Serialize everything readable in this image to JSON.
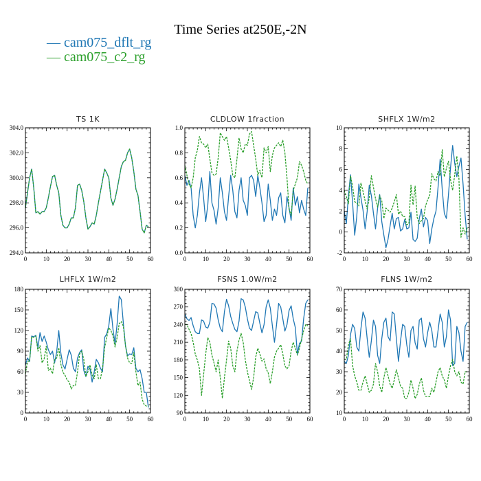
{
  "figure_title": "Time Series at250E,-2N",
  "legend": [
    {
      "label": "— cam075_dflt_rg",
      "color": "#1f77b4"
    },
    {
      "label": "— cam075_c2_rg",
      "color": "#2ca02c"
    }
  ],
  "chart_data": [
    {
      "type": "line",
      "title": "TS   1K",
      "xlim": [
        0,
        60
      ],
      "ylim": [
        294.0,
        304.0
      ],
      "xticks": [
        0,
        10,
        20,
        30,
        40,
        50,
        60
      ],
      "yticks": [
        294.0,
        296.0,
        298.0,
        300.0,
        302.0,
        304.0
      ],
      "ytick_labels": [
        "294.0",
        "296.0",
        "298.0",
        "300.0",
        "302.0",
        "304.0"
      ],
      "series": [
        {
          "name": "cam075_dflt_rg",
          "color": "#1f77b4",
          "dashed": false,
          "values": [
            297.6,
            298.8,
            300.0,
            300.7,
            299.2,
            297.2,
            297.3,
            297.1,
            297.3,
            297.3,
            297.6,
            298.4,
            299.3,
            300.1,
            300.2,
            299.4,
            298.8,
            297.0,
            296.2,
            296.0,
            296.0,
            296.3,
            296.8,
            296.8,
            297.6,
            299.4,
            299.5,
            299.0,
            298.1,
            296.8,
            295.9,
            296.1,
            296.4,
            296.3,
            297.0,
            298.0,
            298.9,
            299.8,
            300.7,
            300.4,
            300.0,
            298.4,
            297.8,
            298.3,
            299.1,
            300.0,
            300.9,
            301.3,
            301.4,
            302.0,
            302.3,
            301.6,
            300.5,
            299.1,
            298.6,
            297.3,
            295.9,
            295.6,
            296.2,
            296.1
          ]
        },
        {
          "name": "cam075_c2_rg",
          "color": "#2ca02c",
          "dashed": true,
          "values": [
            297.6,
            298.8,
            300.0,
            300.7,
            299.2,
            297.2,
            297.3,
            297.1,
            297.3,
            297.3,
            297.6,
            298.4,
            299.3,
            300.1,
            300.2,
            299.4,
            298.8,
            297.0,
            296.2,
            296.0,
            296.0,
            296.3,
            296.8,
            296.8,
            297.6,
            299.4,
            299.5,
            299.0,
            298.1,
            296.8,
            295.9,
            296.1,
            296.4,
            296.3,
            297.0,
            298.0,
            298.9,
            299.8,
            300.7,
            300.4,
            300.0,
            298.4,
            297.8,
            298.3,
            299.1,
            300.0,
            300.9,
            301.3,
            301.4,
            302.0,
            302.3,
            301.6,
            300.5,
            299.1,
            298.6,
            297.3,
            295.9,
            295.6,
            296.2,
            296.1
          ]
        }
      ]
    },
    {
      "type": "line",
      "title": "CLDLOW   1fraction",
      "xlim": [
        0,
        60
      ],
      "ylim": [
        0.0,
        1.0
      ],
      "xticks": [
        0,
        10,
        20,
        30,
        40,
        50,
        60
      ],
      "yticks": [
        0.0,
        0.2,
        0.4,
        0.6,
        0.8,
        1.0
      ],
      "ytick_labels": [
        "0.0",
        "0.2",
        "0.4",
        "0.6",
        "0.8",
        "1.0"
      ],
      "series": [
        {
          "name": "cam075_dflt_rg",
          "color": "#1f77b4",
          "dashed": false,
          "values": [
            0.62,
            0.54,
            0.58,
            0.52,
            0.3,
            0.2,
            0.3,
            0.48,
            0.6,
            0.44,
            0.25,
            0.38,
            0.65,
            0.4,
            0.34,
            0.23,
            0.36,
            0.6,
            0.48,
            0.33,
            0.26,
            0.45,
            0.62,
            0.5,
            0.33,
            0.28,
            0.5,
            0.6,
            0.42,
            0.38,
            0.3,
            0.6,
            0.62,
            0.58,
            0.45,
            0.62,
            0.52,
            0.4,
            0.25,
            0.3,
            0.55,
            0.42,
            0.26,
            0.35,
            0.3,
            0.44,
            0.48,
            0.3,
            0.24,
            0.45,
            0.36,
            0.26,
            0.52,
            0.38,
            0.45,
            0.32,
            0.42,
            0.35,
            0.3,
            0.52
          ]
        },
        {
          "name": "cam075_c2_rg",
          "color": "#2ca02c",
          "dashed": true,
          "values": [
            0.7,
            0.62,
            0.55,
            0.52,
            0.6,
            0.76,
            0.82,
            0.93,
            0.88,
            0.87,
            0.84,
            0.87,
            0.75,
            0.64,
            0.62,
            0.63,
            0.76,
            0.96,
            0.93,
            0.9,
            0.93,
            0.84,
            0.74,
            0.62,
            0.6,
            0.75,
            0.92,
            0.83,
            0.8,
            0.87,
            0.86,
            0.95,
            0.97,
            0.86,
            0.75,
            0.62,
            0.66,
            0.6,
            0.84,
            0.8,
            0.85,
            0.65,
            0.78,
            0.84,
            0.86,
            0.88,
            0.85,
            0.9,
            0.8,
            0.6,
            0.35,
            0.3,
            0.5,
            0.55,
            0.6,
            0.73,
            0.7,
            0.65,
            0.58,
            0.55
          ]
        }
      ]
    },
    {
      "type": "line",
      "title": "SHFLX   1W/m2",
      "xlim": [
        0,
        60
      ],
      "ylim": [
        -2,
        10
      ],
      "xticks": [
        0,
        10,
        20,
        30,
        40,
        50,
        60
      ],
      "yticks": [
        -2,
        0,
        2,
        4,
        6,
        8,
        10
      ],
      "ytick_labels": [
        "-2",
        "0",
        "2",
        "4",
        "6",
        "8",
        "10"
      ],
      "series": [
        {
          "name": "cam075_dflt_rg",
          "color": "#1f77b4",
          "dashed": false,
          "values": [
            2.0,
            0.8,
            3.5,
            5.5,
            2.8,
            -0.3,
            1.5,
            4.6,
            3.3,
            2.1,
            0.3,
            2.0,
            4.5,
            3.5,
            1.8,
            0.3,
            2.3,
            3.6,
            1.0,
            -0.3,
            -1.5,
            -0.7,
            0.6,
            1.8,
            0.3,
            1.3,
            1.4,
            0.1,
            0.3,
            1.2,
            0.3,
            0.4,
            1.9,
            -0.7,
            -0.9,
            -0.6,
            1.3,
            2.2,
            0.5,
            1.4,
            1.1,
            -1.1,
            0.3,
            1.3,
            2.0,
            4.3,
            7.0,
            4.1,
            1.8,
            1.3,
            3.6,
            6.2,
            8.3,
            6.6,
            5.3,
            6.3,
            7.1,
            4.6,
            1.6,
            -0.7
          ]
        },
        {
          "name": "cam075_c2_rg",
          "color": "#2ca02c",
          "dashed": true,
          "values": [
            4.0,
            3.4,
            2.7,
            5.4,
            4.4,
            2.9,
            2.8,
            2.5,
            4.7,
            3.9,
            3.0,
            2.2,
            3.3,
            5.4,
            4.3,
            3.2,
            2.4,
            3.5,
            3.0,
            1.3,
            2.3,
            2.1,
            1.9,
            2.3,
            2.9,
            3.6,
            1.7,
            2.0,
            1.5,
            1.5,
            0.7,
            0.8,
            4.5,
            2.6,
            4.4,
            1.4,
            0.8,
            1.1,
            1.3,
            2.5,
            3.1,
            3.5,
            5.6,
            5.1,
            4.9,
            5.8,
            5.4,
            7.9,
            5.3,
            6.1,
            6.8,
            5.0,
            4.0,
            5.5,
            7.3,
            5.2,
            -0.5,
            0.4,
            -0.2,
            0.4
          ]
        }
      ]
    },
    {
      "type": "line",
      "title": "LHFLX   1W/m2",
      "xlim": [
        0,
        60
      ],
      "ylim": [
        0,
        180
      ],
      "xticks": [
        0,
        10,
        20,
        30,
        40,
        50,
        60
      ],
      "yticks": [
        0,
        30,
        60,
        90,
        120,
        150,
        180
      ],
      "ytick_labels": [
        "0",
        "30",
        "60",
        "90",
        "120",
        "150",
        "180"
      ],
      "series": [
        {
          "name": "cam075_dflt_rg",
          "color": "#1f77b4",
          "dashed": false,
          "values": [
            70,
            80,
            75,
            112,
            111,
            113,
            95,
            117,
            104,
            112,
            103,
            92,
            85,
            90,
            73,
            89,
            120,
            87,
            70,
            64,
            78,
            92,
            84,
            65,
            60,
            80,
            88,
            92,
            62,
            53,
            68,
            64,
            45,
            60,
            78,
            73,
            65,
            60,
            110,
            115,
            127,
            152,
            122,
            101,
            130,
            170,
            165,
            130,
            98,
            83,
            86,
            85,
            95,
            65,
            60,
            63,
            50,
            30,
            30,
            8
          ]
        },
        {
          "name": "cam075_c2_rg",
          "color": "#2ca02c",
          "dashed": true,
          "values": [
            57,
            75,
            75,
            111,
            110,
            112,
            90,
            98,
            73,
            79,
            97,
            62,
            65,
            57,
            78,
            80,
            95,
            71,
            59,
            55,
            48,
            45,
            35,
            40,
            40,
            60,
            86,
            90,
            78,
            53,
            60,
            70,
            55,
            50,
            70,
            50,
            50,
            65,
            95,
            110,
            124,
            120,
            112,
            96,
            110,
            130,
            133,
            126,
            98,
            80,
            73,
            72,
            88,
            60,
            40,
            45,
            20,
            12,
            10,
            10
          ]
        }
      ]
    },
    {
      "type": "line",
      "title": "FSNS   1.0W/m2",
      "xlim": [
        0,
        60
      ],
      "ylim": [
        90,
        300
      ],
      "xticks": [
        0,
        10,
        20,
        30,
        40,
        50,
        60
      ],
      "yticks": [
        90,
        120,
        150,
        180,
        210,
        240,
        270,
        300
      ],
      "ytick_labels": [
        "90",
        "120",
        "150",
        "180",
        "210",
        "240",
        "270",
        "300"
      ],
      "series": [
        {
          "name": "cam075_dflt_rg",
          "color": "#1f77b4",
          "dashed": false,
          "values": [
            258,
            250,
            247,
            252,
            238,
            228,
            225,
            225,
            248,
            246,
            236,
            234,
            244,
            276,
            275,
            268,
            248,
            234,
            228,
            262,
            283,
            272,
            254,
            242,
            232,
            228,
            246,
            284,
            282,
            270,
            250,
            234,
            230,
            246,
            262,
            260,
            242,
            226,
            240,
            270,
            282,
            268,
            238,
            210,
            240,
            276,
            270,
            250,
            229,
            240,
            264,
            272,
            250,
            235,
            190,
            208,
            212,
            250,
            276,
            282
          ]
        },
        {
          "name": "cam075_c2_rg",
          "color": "#2ca02c",
          "dashed": true,
          "values": [
            240,
            240,
            232,
            225,
            210,
            190,
            180,
            165,
            120,
            155,
            190,
            218,
            210,
            188,
            175,
            160,
            180,
            150,
            115,
            150,
            180,
            212,
            200,
            170,
            160,
            195,
            214,
            225,
            210,
            180,
            160,
            145,
            130,
            150,
            185,
            200,
            190,
            178,
            182,
            165,
            158,
            140,
            160,
            185,
            195,
            200,
            206,
            190,
            170,
            165,
            170,
            195,
            210,
            200,
            188,
            200,
            215,
            230,
            240,
            238
          ]
        }
      ]
    },
    {
      "type": "line",
      "title": "FLNS   1W/m2",
      "xlim": [
        0,
        60
      ],
      "ylim": [
        10,
        70
      ],
      "xticks": [
        0,
        10,
        20,
        30,
        40,
        50,
        60
      ],
      "yticks": [
        10,
        20,
        30,
        40,
        50,
        60,
        70
      ],
      "ytick_labels": [
        "10",
        "20",
        "30",
        "40",
        "50",
        "60",
        "70"
      ],
      "series": [
        {
          "name": "cam075_dflt_rg",
          "color": "#1f77b4",
          "dashed": false,
          "values": [
            35,
            34,
            38,
            48,
            53,
            51,
            42,
            40,
            51,
            59,
            56,
            46,
            37,
            45,
            55,
            52,
            38,
            34,
            46,
            54,
            56,
            47,
            45,
            59,
            58,
            46,
            35,
            45,
            53,
            52,
            43,
            37,
            50,
            52,
            44,
            41,
            55,
            56,
            46,
            42,
            49,
            54,
            50,
            42,
            42,
            50,
            58,
            54,
            42,
            47,
            60,
            55,
            33,
            34,
            52,
            49,
            40,
            35,
            52,
            54
          ]
        },
        {
          "name": "cam075_c2_rg",
          "color": "#2ca02c",
          "dashed": true,
          "values": [
            36,
            36,
            43,
            46,
            33,
            28,
            25,
            21,
            21,
            25,
            28,
            24,
            20,
            21,
            24,
            34,
            30,
            23,
            20,
            27,
            32,
            28,
            24,
            22,
            26,
            31,
            27,
            23,
            22,
            17,
            17,
            20,
            26,
            22,
            17,
            19,
            24,
            27,
            21,
            18,
            18,
            18,
            22,
            20,
            25,
            30,
            32,
            28,
            26,
            22,
            28,
            33,
            36,
            30,
            28,
            30,
            25,
            24,
            30,
            30
          ]
        }
      ]
    }
  ]
}
